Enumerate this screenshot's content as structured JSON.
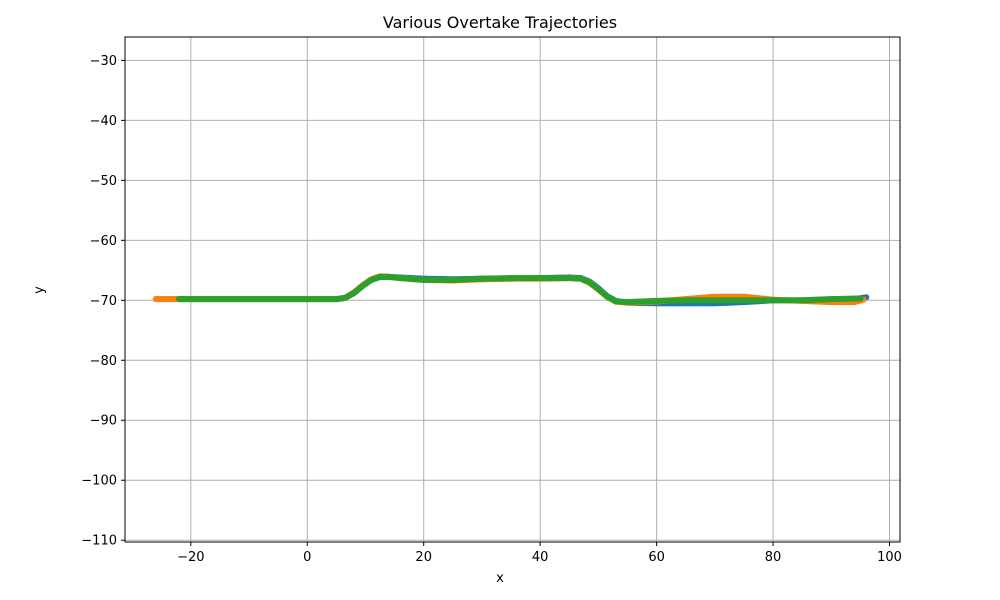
{
  "chart_data": {
    "type": "scatter",
    "title": "Various Overtake Trajectories",
    "xlabel": "x",
    "ylabel": "y",
    "xlim": [
      -31.3,
      101.8
    ],
    "ylim": [
      -110.3,
      -26.1
    ],
    "xticks": [
      -20,
      0,
      20,
      40,
      60,
      80,
      100
    ],
    "yticks": [
      -30,
      -40,
      -50,
      -60,
      -70,
      -80,
      -90,
      -100,
      -110
    ],
    "xtick_labels": [
      "−20",
      "0",
      "20",
      "40",
      "60",
      "80",
      "100"
    ],
    "ytick_labels": [
      "−30",
      "−40",
      "−50",
      "−60",
      "−70",
      "−80",
      "−90",
      "−100",
      "−110"
    ],
    "grid": true,
    "legend": "none",
    "series": [
      {
        "color": "#1f77b4",
        "points": [
          [
            -22.0,
            -69.8
          ],
          [
            -15,
            -69.8
          ],
          [
            -5,
            -69.8
          ],
          [
            5,
            -69.8
          ],
          [
            6.5,
            -69.6
          ],
          [
            8,
            -68.8
          ],
          [
            9.5,
            -67.6
          ],
          [
            11,
            -66.6
          ],
          [
            12.5,
            -66.1
          ],
          [
            14,
            -66.1
          ],
          [
            16,
            -66.2
          ],
          [
            20,
            -66.4
          ],
          [
            25,
            -66.5
          ],
          [
            30,
            -66.4
          ],
          [
            35,
            -66.4
          ],
          [
            40,
            -66.3
          ],
          [
            45,
            -66.2
          ],
          [
            47,
            -66.3
          ],
          [
            48.5,
            -66.9
          ],
          [
            50,
            -68.0
          ],
          [
            51.5,
            -69.3
          ],
          [
            53,
            -70.1
          ],
          [
            55,
            -70.4
          ],
          [
            60,
            -70.5
          ],
          [
            65,
            -70.5
          ],
          [
            70,
            -70.5
          ],
          [
            75,
            -70.3
          ],
          [
            80,
            -70.0
          ],
          [
            85,
            -70.0
          ],
          [
            90,
            -69.9
          ],
          [
            94,
            -69.8
          ],
          [
            96,
            -69.5
          ]
        ]
      },
      {
        "color": "#ff7f0e",
        "points": [
          [
            -26,
            -69.8
          ],
          [
            -22,
            -69.8
          ],
          [
            -15,
            -69.8
          ],
          [
            -5,
            -69.8
          ],
          [
            5,
            -69.8
          ],
          [
            6.5,
            -69.6
          ],
          [
            8,
            -68.7
          ],
          [
            9.5,
            -67.5
          ],
          [
            11,
            -66.5
          ],
          [
            12.5,
            -66.0
          ],
          [
            14,
            -66.1
          ],
          [
            16,
            -66.3
          ],
          [
            20,
            -66.6
          ],
          [
            25,
            -66.7
          ],
          [
            30,
            -66.5
          ],
          [
            35,
            -66.4
          ],
          [
            40,
            -66.4
          ],
          [
            45,
            -66.3
          ],
          [
            47,
            -66.4
          ],
          [
            48.5,
            -67.1
          ],
          [
            50,
            -68.2
          ],
          [
            51.5,
            -69.4
          ],
          [
            53,
            -70.2
          ],
          [
            55,
            -70.4
          ],
          [
            60,
            -70.2
          ],
          [
            65,
            -69.8
          ],
          [
            70,
            -69.4
          ],
          [
            75,
            -69.4
          ],
          [
            80,
            -69.9
          ],
          [
            85,
            -70.1
          ],
          [
            90,
            -70.3
          ],
          [
            94,
            -70.3
          ],
          [
            95.5,
            -69.9
          ]
        ]
      },
      {
        "color": "#2ca02c",
        "points": [
          [
            -22,
            -69.8
          ],
          [
            -15,
            -69.8
          ],
          [
            -5,
            -69.8
          ],
          [
            5,
            -69.8
          ],
          [
            6.5,
            -69.6
          ],
          [
            8,
            -68.8
          ],
          [
            9.5,
            -67.6
          ],
          [
            11,
            -66.6
          ],
          [
            12.5,
            -66.1
          ],
          [
            14,
            -66.1
          ],
          [
            16,
            -66.3
          ],
          [
            20,
            -66.6
          ],
          [
            25,
            -66.6
          ],
          [
            30,
            -66.4
          ],
          [
            35,
            -66.3
          ],
          [
            40,
            -66.3
          ],
          [
            45,
            -66.3
          ],
          [
            47,
            -66.4
          ],
          [
            48.5,
            -67.0
          ],
          [
            50,
            -68.1
          ],
          [
            51.5,
            -69.4
          ],
          [
            53,
            -70.2
          ],
          [
            55,
            -70.3
          ],
          [
            60,
            -70.1
          ],
          [
            65,
            -70.0
          ],
          [
            70,
            -70.0
          ],
          [
            75,
            -70.0
          ],
          [
            80,
            -70.0
          ],
          [
            85,
            -70.0
          ],
          [
            90,
            -69.8
          ],
          [
            95,
            -69.7
          ]
        ]
      }
    ]
  }
}
